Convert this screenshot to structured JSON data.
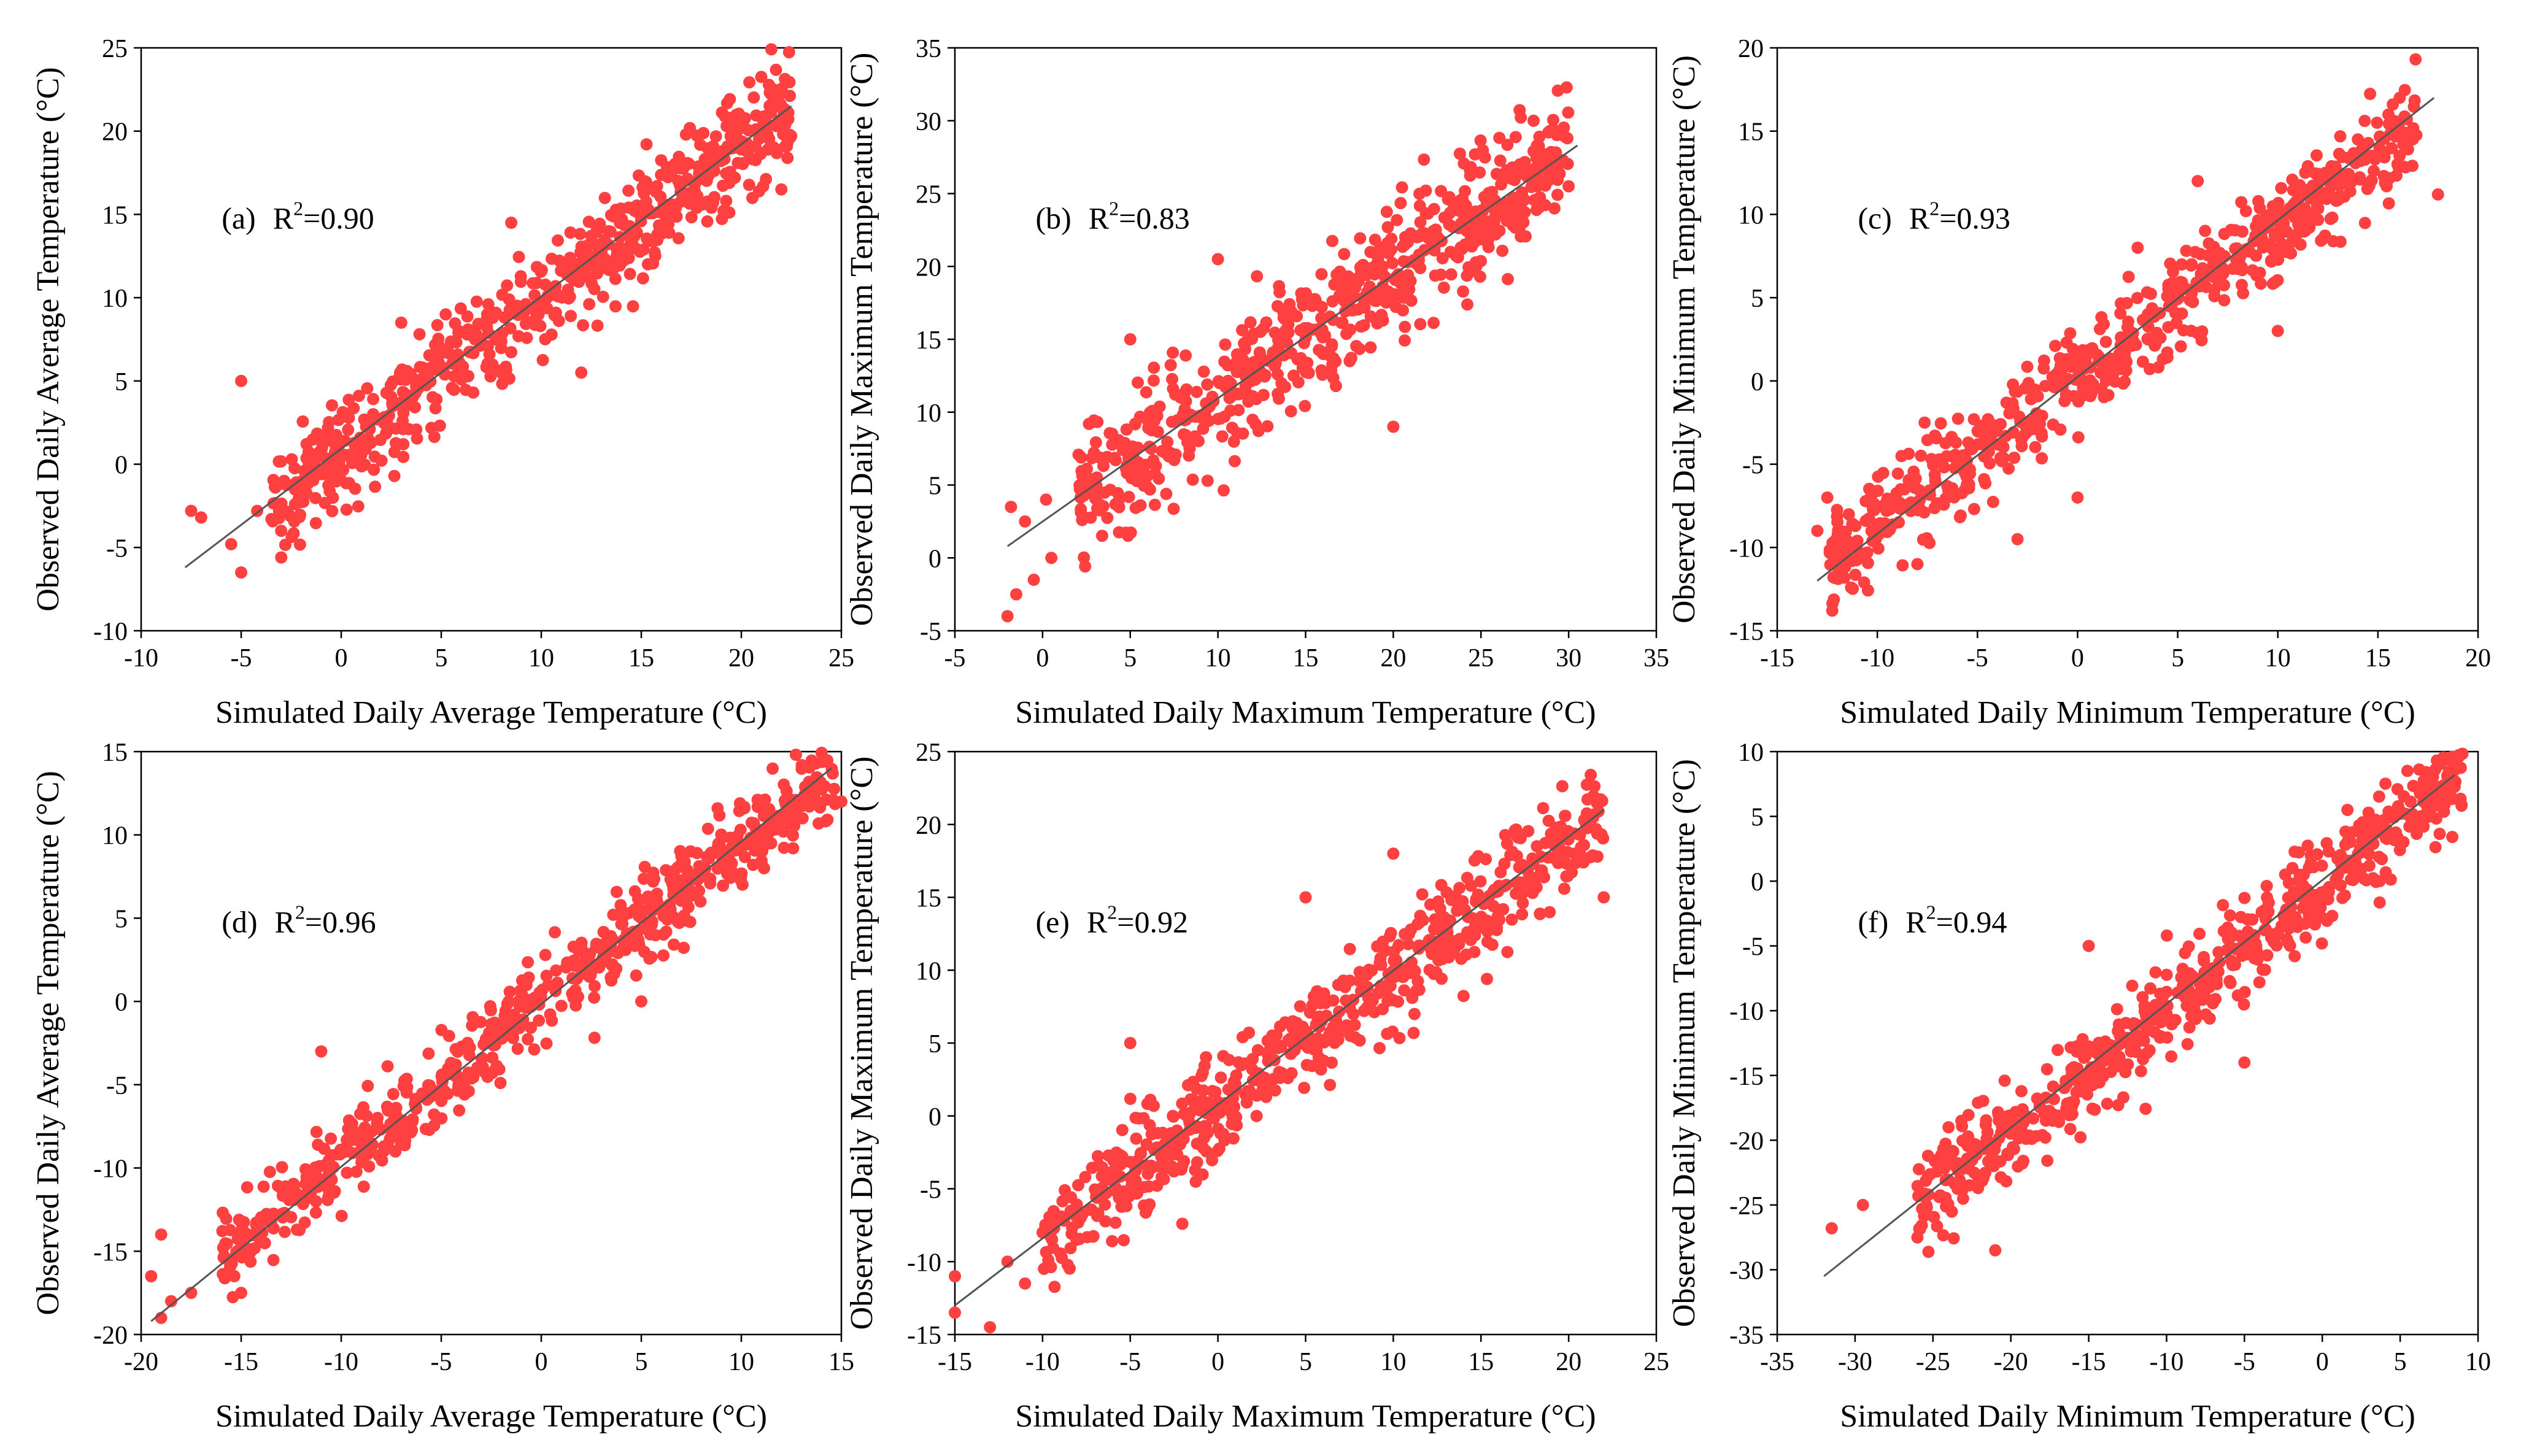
{
  "figure": {
    "marker_color": "#ff4040",
    "fit_line_color": "#555555"
  },
  "chart_data": [
    {
      "type": "scatter",
      "panel_label": "(a)",
      "r2_prefix": "R",
      "r2_sup": "2",
      "r2_value": "=0.90",
      "xlabel": "Simulated Daily Average Temperature (°C)",
      "ylabel": "Observed Daily Average Temperature (°C)",
      "xlim": [
        -10,
        25
      ],
      "ylim": [
        -10,
        25
      ],
      "xticks": [
        -10,
        -5,
        0,
        5,
        10,
        15,
        20,
        25
      ],
      "yticks": [
        -10,
        -5,
        0,
        5,
        10,
        15,
        20,
        25
      ],
      "fit_line": [
        [
          -7.8,
          -6.2
        ],
        [
          22.5,
          21.5
        ]
      ],
      "cloud": {
        "x_min": -3.5,
        "x_max": 22.5,
        "slope": 0.92,
        "intercept": 0.7,
        "spread": 1.6,
        "n": 650
      },
      "outliers": [
        [
          -7.5,
          -2.8
        ],
        [
          -7,
          -3.2
        ],
        [
          -5.5,
          -4.8
        ],
        [
          -5,
          -6.5
        ],
        [
          -5,
          5
        ],
        [
          -4.2,
          -2.8
        ],
        [
          -3,
          -4
        ],
        [
          3,
          8.5
        ],
        [
          8.5,
          14.5
        ],
        [
          12,
          5.5
        ],
        [
          21.5,
          22.2
        ],
        [
          22,
          16.5
        ]
      ]
    },
    {
      "type": "scatter",
      "panel_label": "(b)",
      "r2_prefix": "R",
      "r2_sup": "2",
      "r2_value": "=0.83",
      "xlabel": "Simulated Daily Maximum Temperature (°C)",
      "ylabel": "Observed Daily Maximum Temperature (°C)",
      "xlim": [
        -5,
        35
      ],
      "ylim": [
        -5,
        35
      ],
      "xticks": [
        -5,
        0,
        5,
        10,
        15,
        20,
        25,
        30,
        35
      ],
      "yticks": [
        -5,
        0,
        5,
        10,
        15,
        20,
        25,
        30,
        35
      ],
      "fit_line": [
        [
          -2,
          0.8
        ],
        [
          30.5,
          28.3
        ]
      ],
      "cloud": {
        "x_min": 2,
        "x_max": 30,
        "slope": 0.85,
        "intercept": 2.5,
        "spread": 2.3,
        "n": 650
      },
      "outliers": [
        [
          -2,
          -4
        ],
        [
          -1.8,
          3.5
        ],
        [
          -1.5,
          -2.5
        ],
        [
          -0.5,
          -1.5
        ],
        [
          0.5,
          0
        ],
        [
          0.2,
          4
        ],
        [
          -1,
          2.5
        ],
        [
          5,
          15
        ],
        [
          10,
          20.5
        ],
        [
          20,
          9
        ],
        [
          28,
          30
        ],
        [
          30,
          25.5
        ]
      ]
    },
    {
      "type": "scatter",
      "panel_label": "(c)",
      "r2_prefix": "R",
      "r2_sup": "2",
      "r2_value": "=0.93",
      "xlabel": "Simulated Daily Minimum Temperature (°C)",
      "ylabel": "Observed Daily Minimum Temperature (°C)",
      "xlim": [
        -15,
        20
      ],
      "ylim": [
        -15,
        20
      ],
      "xticks": [
        -15,
        -10,
        -5,
        0,
        5,
        10,
        15,
        20
      ],
      "yticks": [
        -15,
        -10,
        -5,
        0,
        5,
        10,
        15,
        20
      ],
      "fit_line": [
        [
          -13,
          -12
        ],
        [
          17.8,
          17
        ]
      ],
      "cloud": {
        "x_min": -12.5,
        "x_max": 17,
        "slope": 0.88,
        "intercept": 0.3,
        "spread": 1.5,
        "n": 650
      },
      "outliers": [
        [
          -13,
          -9
        ],
        [
          -12.5,
          -7
        ],
        [
          -8,
          -11
        ],
        [
          -3,
          -9.5
        ],
        [
          0,
          -7
        ],
        [
          3,
          8
        ],
        [
          6,
          12
        ],
        [
          10,
          3
        ],
        [
          14,
          14.5
        ],
        [
          18,
          11.2
        ]
      ]
    },
    {
      "type": "scatter",
      "panel_label": "(d)",
      "r2_prefix": "R",
      "r2_sup": "2",
      "r2_value": "=0.96",
      "xlabel": "Simulated Daily Average Temperature (°C)",
      "ylabel": "Observed Daily Average Temperature (°C)",
      "xlim": [
        -20,
        15
      ],
      "ylim": [
        -20,
        15
      ],
      "xticks": [
        -20,
        -15,
        -10,
        -5,
        0,
        5,
        10,
        15
      ],
      "yticks": [
        -20,
        -15,
        -10,
        -5,
        0,
        5,
        10,
        15
      ],
      "fit_line": [
        [
          -19.5,
          -19.2
        ],
        [
          14.5,
          14
        ]
      ],
      "cloud": {
        "x_min": -16,
        "x_max": 15,
        "slope": 0.95,
        "intercept": 0,
        "spread": 1.3,
        "n": 650
      },
      "outliers": [
        [
          -19.5,
          -16.5
        ],
        [
          -19,
          -14
        ],
        [
          -19,
          -19
        ],
        [
          -18.5,
          -18
        ],
        [
          -17.5,
          -17.5
        ],
        [
          -11,
          -3
        ],
        [
          -15,
          -17.5
        ],
        [
          5,
          0
        ],
        [
          15,
          12
        ]
      ]
    },
    {
      "type": "scatter",
      "panel_label": "(e)",
      "r2_prefix": "R",
      "r2_sup": "2",
      "r2_value": "=0.92",
      "xlabel": "Simulated Daily Maximum Temperature (°C)",
      "ylabel": "Observed Daily Maximum Temperature (°C)",
      "xlim": [
        -15,
        25
      ],
      "ylim": [
        -15,
        25
      ],
      "xticks": [
        -15,
        -10,
        -5,
        0,
        5,
        10,
        15,
        20,
        25
      ],
      "yticks": [
        -15,
        -10,
        -5,
        0,
        5,
        10,
        15,
        20,
        25
      ],
      "fit_line": [
        [
          -15,
          -13
        ],
        [
          22,
          21
        ]
      ],
      "cloud": {
        "x_min": -10,
        "x_max": 22,
        "slope": 0.92,
        "intercept": 0.5,
        "spread": 1.8,
        "n": 650
      },
      "outliers": [
        [
          -15,
          -13.5
        ],
        [
          -15,
          -11
        ],
        [
          -13,
          -14.5
        ],
        [
          -12,
          -10
        ],
        [
          -11,
          -11.5
        ],
        [
          -10,
          -8
        ],
        [
          -5,
          5
        ],
        [
          5,
          15
        ],
        [
          10,
          18
        ],
        [
          22,
          15
        ]
      ]
    },
    {
      "type": "scatter",
      "panel_label": "(f)",
      "r2_prefix": "R",
      "r2_sup": "2",
      "r2_value": "=0.94",
      "xlabel": "Simulated Daily Minimum Temperature (°C)",
      "ylabel": "Observed Daily Minimum Temperature (°C)",
      "xlim": [
        -35,
        10
      ],
      "ylim": [
        -35,
        10
      ],
      "xticks": [
        -35,
        -30,
        -25,
        -20,
        -15,
        -10,
        -5,
        0,
        5,
        10
      ],
      "yticks": [
        -35,
        -30,
        -25,
        -20,
        -15,
        -10,
        -5,
        0,
        5,
        10
      ],
      "fit_line": [
        [
          -32,
          -30.5
        ],
        [
          8.5,
          8.2
        ]
      ],
      "cloud": {
        "x_min": -26,
        "x_max": 9,
        "slope": 0.96,
        "intercept": -0.4,
        "spread": 1.8,
        "n": 650
      },
      "outliers": [
        [
          -31.5,
          -26.8
        ],
        [
          -29.5,
          -25
        ],
        [
          -26,
          -27.5
        ],
        [
          -24,
          -19
        ],
        [
          -21,
          -28.5
        ],
        [
          -15,
          -5
        ],
        [
          -5,
          -14
        ],
        [
          8,
          7
        ]
      ]
    }
  ]
}
